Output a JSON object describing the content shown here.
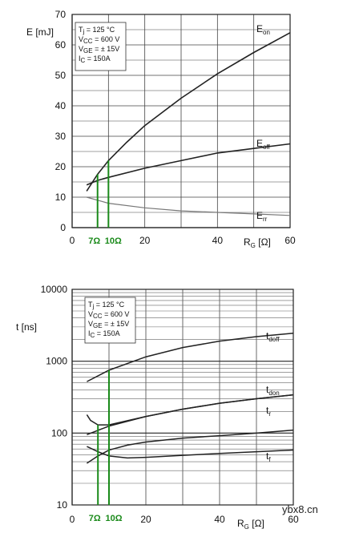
{
  "chart_data": [
    {
      "type": "line",
      "ylabel": "E [mJ]",
      "xlabel": "RG [Ω]",
      "ylim": [
        0,
        70
      ],
      "xlim": [
        0,
        60
      ],
      "grid": true,
      "x_ticks": [
        "0",
        "20",
        "40",
        "60"
      ],
      "y_ticks": [
        "0",
        "10",
        "20",
        "30",
        "40",
        "50",
        "60",
        "70"
      ],
      "conditions": [
        "Tj = 125 °C",
        "VCC = 600 V",
        "VGE = ± 15V",
        "IC = 150A"
      ],
      "markers": [
        {
          "x": 7,
          "label": "7Ω"
        },
        {
          "x": 10,
          "label": "10Ω"
        }
      ],
      "series": [
        {
          "name": "Eon",
          "x": [
            4,
            7,
            10,
            15,
            20,
            30,
            40,
            50,
            60
          ],
          "y": [
            12,
            17.5,
            22,
            28,
            33.5,
            42.5,
            50.5,
            57.5,
            64
          ]
        },
        {
          "name": "Eoff",
          "x": [
            4,
            7,
            10,
            20,
            30,
            40,
            50,
            60
          ],
          "y": [
            14,
            15.5,
            16.5,
            19.5,
            22,
            24.5,
            26,
            27.5
          ]
        },
        {
          "name": "Err",
          "x": [
            4,
            7,
            10,
            20,
            30,
            40,
            50,
            60
          ],
          "y": [
            10,
            9,
            8,
            6.5,
            5.5,
            5,
            4.5,
            4
          ]
        }
      ]
    },
    {
      "type": "line",
      "ylabel": "t [ns]",
      "xlabel": "RG [Ω]",
      "yscale": "log",
      "ylim": [
        10,
        10000
      ],
      "xlim": [
        0,
        60
      ],
      "grid": true,
      "x_ticks": [
        "0",
        "20",
        "40",
        "60"
      ],
      "y_ticks": [
        "10",
        "100",
        "1000",
        "10000"
      ],
      "conditions": [
        "Tj = 125 °C",
        "VCC = 600 V",
        "VGE = ± 15V",
        "IC = 150A"
      ],
      "markers": [
        {
          "x": 7,
          "label": "7Ω"
        },
        {
          "x": 10,
          "label": "10Ω"
        }
      ],
      "series": [
        {
          "name": "tdoff",
          "x": [
            4,
            10,
            20,
            30,
            40,
            50,
            60
          ],
          "y": [
            520,
            750,
            1150,
            1550,
            1900,
            2200,
            2450
          ]
        },
        {
          "name": "tdon",
          "x": [
            4,
            10,
            20,
            30,
            40,
            50,
            60
          ],
          "y": [
            95,
            125,
            170,
            215,
            260,
            300,
            340
          ]
        },
        {
          "name": "tr",
          "x": [
            4,
            5,
            7,
            10,
            20,
            30,
            40,
            50,
            60
          ],
          "y": [
            180,
            150,
            130,
            130,
            170,
            215,
            260,
            300,
            340
          ]
        },
        {
          "name": "tf",
          "x": [
            4,
            7,
            10,
            15,
            20,
            30,
            40,
            50,
            60
          ],
          "y": [
            38,
            48,
            58,
            68,
            75,
            85,
            92,
            100,
            110
          ]
        },
        {
          "name": "tf2",
          "x": [
            4,
            7,
            10,
            15,
            20,
            30,
            40,
            50,
            60
          ],
          "y": [
            65,
            55,
            48,
            45,
            46,
            49,
            52,
            55,
            58
          ]
        }
      ],
      "labels_printed": [
        "tdoff",
        "tdon",
        "tr",
        "tf"
      ]
    }
  ],
  "watermark": "ybx8.cn"
}
